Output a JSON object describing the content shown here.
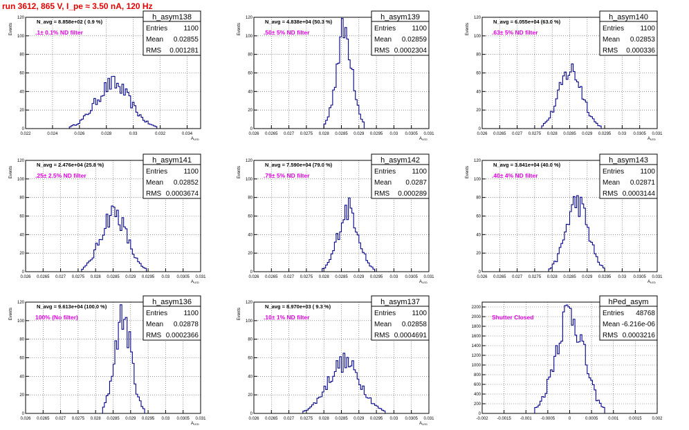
{
  "page": {
    "title": "run 3612,   865 V, I_pe ≈ 3.50 nA, 120 Hz"
  },
  "colors": {
    "line": "#00008b",
    "grid": "#000000",
    "annotation": "#e000e0",
    "title": "#e00000",
    "frame": "#000000"
  },
  "chart_data": [
    {
      "type": "histogram",
      "name": "h_asym138",
      "ylabel": "Events",
      "xlabel": "A_LED",
      "xlim": [
        0.022,
        0.035
      ],
      "ylim": [
        0,
        120
      ],
      "xticks": [
        0.022,
        0.024,
        0.026,
        0.028,
        0.03,
        0.032,
        0.034
      ],
      "xtick_labels": [
        "0.022",
        "0.024",
        "0.026",
        "0.028",
        "0.03",
        "0.032",
        "0.034"
      ],
      "yticks": [
        0,
        20,
        40,
        60,
        80,
        100,
        120
      ],
      "stats": {
        "entries_label": "Entries",
        "entries": "1100",
        "mean_label": "Mean",
        "mean": "0.02855",
        "rms_label": "RMS",
        "rms": "0.001281"
      },
      "navg": "N_avg = 8.858e+02 ( 0.9 %)",
      "annotation": ".1± 0.1% ND filter",
      "peak": 0.0285,
      "sigma": 0.00128,
      "height": 48
    },
    {
      "type": "histogram",
      "name": "h_asym139",
      "ylabel": "Events",
      "xlabel": "A_LED",
      "xlim": [
        0.026,
        0.031
      ],
      "ylim": [
        0,
        120
      ],
      "xticks": [
        0.026,
        0.0265,
        0.027,
        0.0275,
        0.028,
        0.0285,
        0.029,
        0.0295,
        0.03,
        0.0305,
        0.031
      ],
      "xtick_labels": [
        "0.026",
        "0.0265",
        "0.027",
        "0.0275",
        "0.028",
        "0.0285",
        "0.029",
        "0.0295",
        "0.03",
        "0.0305",
        "0.031"
      ],
      "yticks": [
        0,
        20,
        40,
        60,
        80,
        100,
        120
      ],
      "stats": {
        "entries_label": "Entries",
        "entries": "1100",
        "mean_label": "Mean",
        "mean": "0.02859",
        "rms_label": "RMS",
        "rms": "0.0002304"
      },
      "navg": "N_avg = 4.838e+04 (50.3 %)",
      "annotation": ".50± 5% ND filter",
      "peak": 0.02859,
      "sigma": 0.00023,
      "height": 105
    },
    {
      "type": "histogram",
      "name": "h_asym140",
      "ylabel": "Events",
      "xlabel": "A_LED",
      "xlim": [
        0.026,
        0.031
      ],
      "ylim": [
        0,
        120
      ],
      "xticks": [
        0.026,
        0.0265,
        0.027,
        0.0275,
        0.028,
        0.0285,
        0.029,
        0.0295,
        0.03,
        0.0305,
        0.031
      ],
      "xtick_labels": [
        "0.026",
        "0.0265",
        "0.027",
        "0.0275",
        "0.028",
        "0.0285",
        "0.029",
        "0.0295",
        "0.03",
        "0.0305",
        "0.031"
      ],
      "yticks": [
        0,
        20,
        40,
        60,
        80,
        100,
        120
      ],
      "stats": {
        "entries_label": "Entries",
        "entries": "1100",
        "mean_label": "Mean",
        "mean": "0.02853",
        "rms_label": "RMS",
        "rms": "0.000336"
      },
      "navg": "N_avg = 6.055e+04 (63.0 %)",
      "annotation": ".63± 5% ND filter",
      "peak": 0.02853,
      "sigma": 0.000336,
      "height": 63
    },
    {
      "type": "histogram",
      "name": "h_asym141",
      "ylabel": "Events",
      "xlabel": "A_LED",
      "xlim": [
        0.026,
        0.031
      ],
      "ylim": [
        0,
        120
      ],
      "xticks": [
        0.026,
        0.0265,
        0.027,
        0.0275,
        0.028,
        0.0285,
        0.029,
        0.0295,
        0.03,
        0.0305,
        0.031
      ],
      "xtick_labels": [
        "0.026",
        "0.0265",
        "0.027",
        "0.0275",
        "0.028",
        "0.0285",
        "0.029",
        "0.0295",
        "0.03",
        "0.0305",
        "0.031"
      ],
      "yticks": [
        0,
        20,
        40,
        60,
        80,
        100,
        120
      ],
      "stats": {
        "entries_label": "Entries",
        "entries": "1100",
        "mean_label": "Mean",
        "mean": "0.02852",
        "rms_label": "RMS",
        "rms": "0.0003674"
      },
      "navg": "N_avg = 2.476e+04 (25.8 %)",
      "annotation": ".25± 2.5% ND filter",
      "peak": 0.02852,
      "sigma": 0.000367,
      "height": 64
    },
    {
      "type": "histogram",
      "name": "h_asym142",
      "ylabel": "Events",
      "xlabel": "A_LED",
      "xlim": [
        0.026,
        0.031
      ],
      "ylim": [
        0,
        120
      ],
      "xticks": [
        0.026,
        0.0265,
        0.027,
        0.0275,
        0.028,
        0.0285,
        0.029,
        0.0295,
        0.03,
        0.0305,
        0.031
      ],
      "xtick_labels": [
        "0.026",
        "0.0265",
        "0.027",
        "0.0275",
        "0.028",
        "0.0285",
        "0.029",
        "0.0295",
        "0.03",
        "0.0305",
        "0.031"
      ],
      "yticks": [
        0,
        20,
        40,
        60,
        80,
        100,
        120
      ],
      "stats": {
        "entries_label": "Entries",
        "entries": "1100",
        "mean_label": "Mean",
        "mean": "0.0287",
        "rms_label": "RMS",
        "rms": "0.000289"
      },
      "navg": "N_avg = 7.590e+04 (79.0 %)",
      "annotation": ".79± 5% ND filter",
      "peak": 0.0287,
      "sigma": 0.000289,
      "height": 68
    },
    {
      "type": "histogram",
      "name": "h_asym143",
      "ylabel": "Events",
      "xlabel": "A_LED",
      "xlim": [
        0.026,
        0.031
      ],
      "ylim": [
        0,
        120
      ],
      "xticks": [
        0.026,
        0.0265,
        0.027,
        0.0275,
        0.028,
        0.0285,
        0.029,
        0.0295,
        0.03,
        0.0305,
        0.031
      ],
      "xtick_labels": [
        "0.026",
        "0.0265",
        "0.027",
        "0.0275",
        "0.028",
        "0.0285",
        "0.029",
        "0.0295",
        "0.03",
        "0.0305",
        "0.031"
      ],
      "yticks": [
        0,
        20,
        40,
        60,
        80,
        100,
        120
      ],
      "stats": {
        "entries_label": "Entries",
        "entries": "1100",
        "mean_label": "Mean",
        "mean": "0.02871",
        "rms_label": "RMS",
        "rms": "0.0003144"
      },
      "navg": "N_avg = 3.841e+04 (40.0 %)",
      "annotation": ".40± 4% ND filter",
      "peak": 0.02871,
      "sigma": 0.000314,
      "height": 75
    },
    {
      "type": "histogram",
      "name": "h_asym136",
      "ylabel": "Events",
      "xlabel": "A_LED",
      "xlim": [
        0.026,
        0.031
      ],
      "ylim": [
        0,
        120
      ],
      "xticks": [
        0.026,
        0.0265,
        0.027,
        0.0275,
        0.028,
        0.0285,
        0.029,
        0.0295,
        0.03,
        0.0305,
        0.031
      ],
      "xtick_labels": [
        "0.026",
        "0.0265",
        "0.027",
        "0.0275",
        "0.028",
        "0.0285",
        "0.029",
        "0.0295",
        "0.03",
        "0.0305",
        "0.031"
      ],
      "yticks": [
        0,
        20,
        40,
        60,
        80,
        100,
        120
      ],
      "stats": {
        "entries_label": "Entries",
        "entries": "1100",
        "mean_label": "Mean",
        "mean": "0.02878",
        "rms_label": "RMS",
        "rms": "0.0002366"
      },
      "navg": "N_avg = 9.613e+04 (100.0 %)",
      "annotation": "100% (No filter)",
      "peak": 0.02878,
      "sigma": 0.000237,
      "height": 104
    },
    {
      "type": "histogram",
      "name": "h_asym137",
      "ylabel": "Events",
      "xlabel": "A_LED",
      "xlim": [
        0.026,
        0.031
      ],
      "ylim": [
        0,
        120
      ],
      "xticks": [
        0.026,
        0.0265,
        0.027,
        0.0275,
        0.028,
        0.0285,
        0.029,
        0.0295,
        0.03,
        0.0305,
        0.031
      ],
      "xtick_labels": [
        "0.026",
        "0.0265",
        "0.027",
        "0.0275",
        "0.028",
        "0.0285",
        "0.029",
        "0.0295",
        "0.03",
        "0.0305",
        "0.031"
      ],
      "yticks": [
        0,
        20,
        40,
        60,
        80,
        100,
        120
      ],
      "stats": {
        "entries_label": "Entries",
        "entries": "1100",
        "mean_label": "Mean",
        "mean": "0.02858",
        "rms_label": "RMS",
        "rms": "0.0004691"
      },
      "navg": "N_avg = 8.970e+03 ( 9.3 %)",
      "annotation": ".10± 1% ND filter",
      "peak": 0.02858,
      "sigma": 0.000469,
      "height": 55
    },
    {
      "type": "histogram",
      "name": "hPed_asym",
      "ylabel": "",
      "xlabel": "",
      "xlim": [
        -0.002,
        0.002
      ],
      "ylim": [
        0,
        2300
      ],
      "xticks": [
        -0.002,
        -0.0015,
        -0.001,
        -0.0005,
        0,
        0.0005,
        0.001,
        0.0015,
        0.002
      ],
      "xtick_labels": [
        "-0.002",
        "-0.0015",
        "-0.001",
        "-0.0005",
        "0",
        "0.0005",
        "0.001",
        "0.0015",
        "0.002"
      ],
      "yticks": [
        0,
        200,
        400,
        600,
        800,
        1000,
        1200,
        1400,
        1600,
        1800,
        2000,
        2200
      ],
      "stats": {
        "entries_label": "Entries",
        "entries": "48768",
        "mean_label": "Mean",
        "mean": "-6.216e-06",
        "rms_label": "RMS",
        "rms": "0.0003216"
      },
      "navg": "",
      "annotation": "Shutter Closed",
      "peak": 0.0,
      "sigma": 0.00032,
      "height": 2100
    }
  ]
}
